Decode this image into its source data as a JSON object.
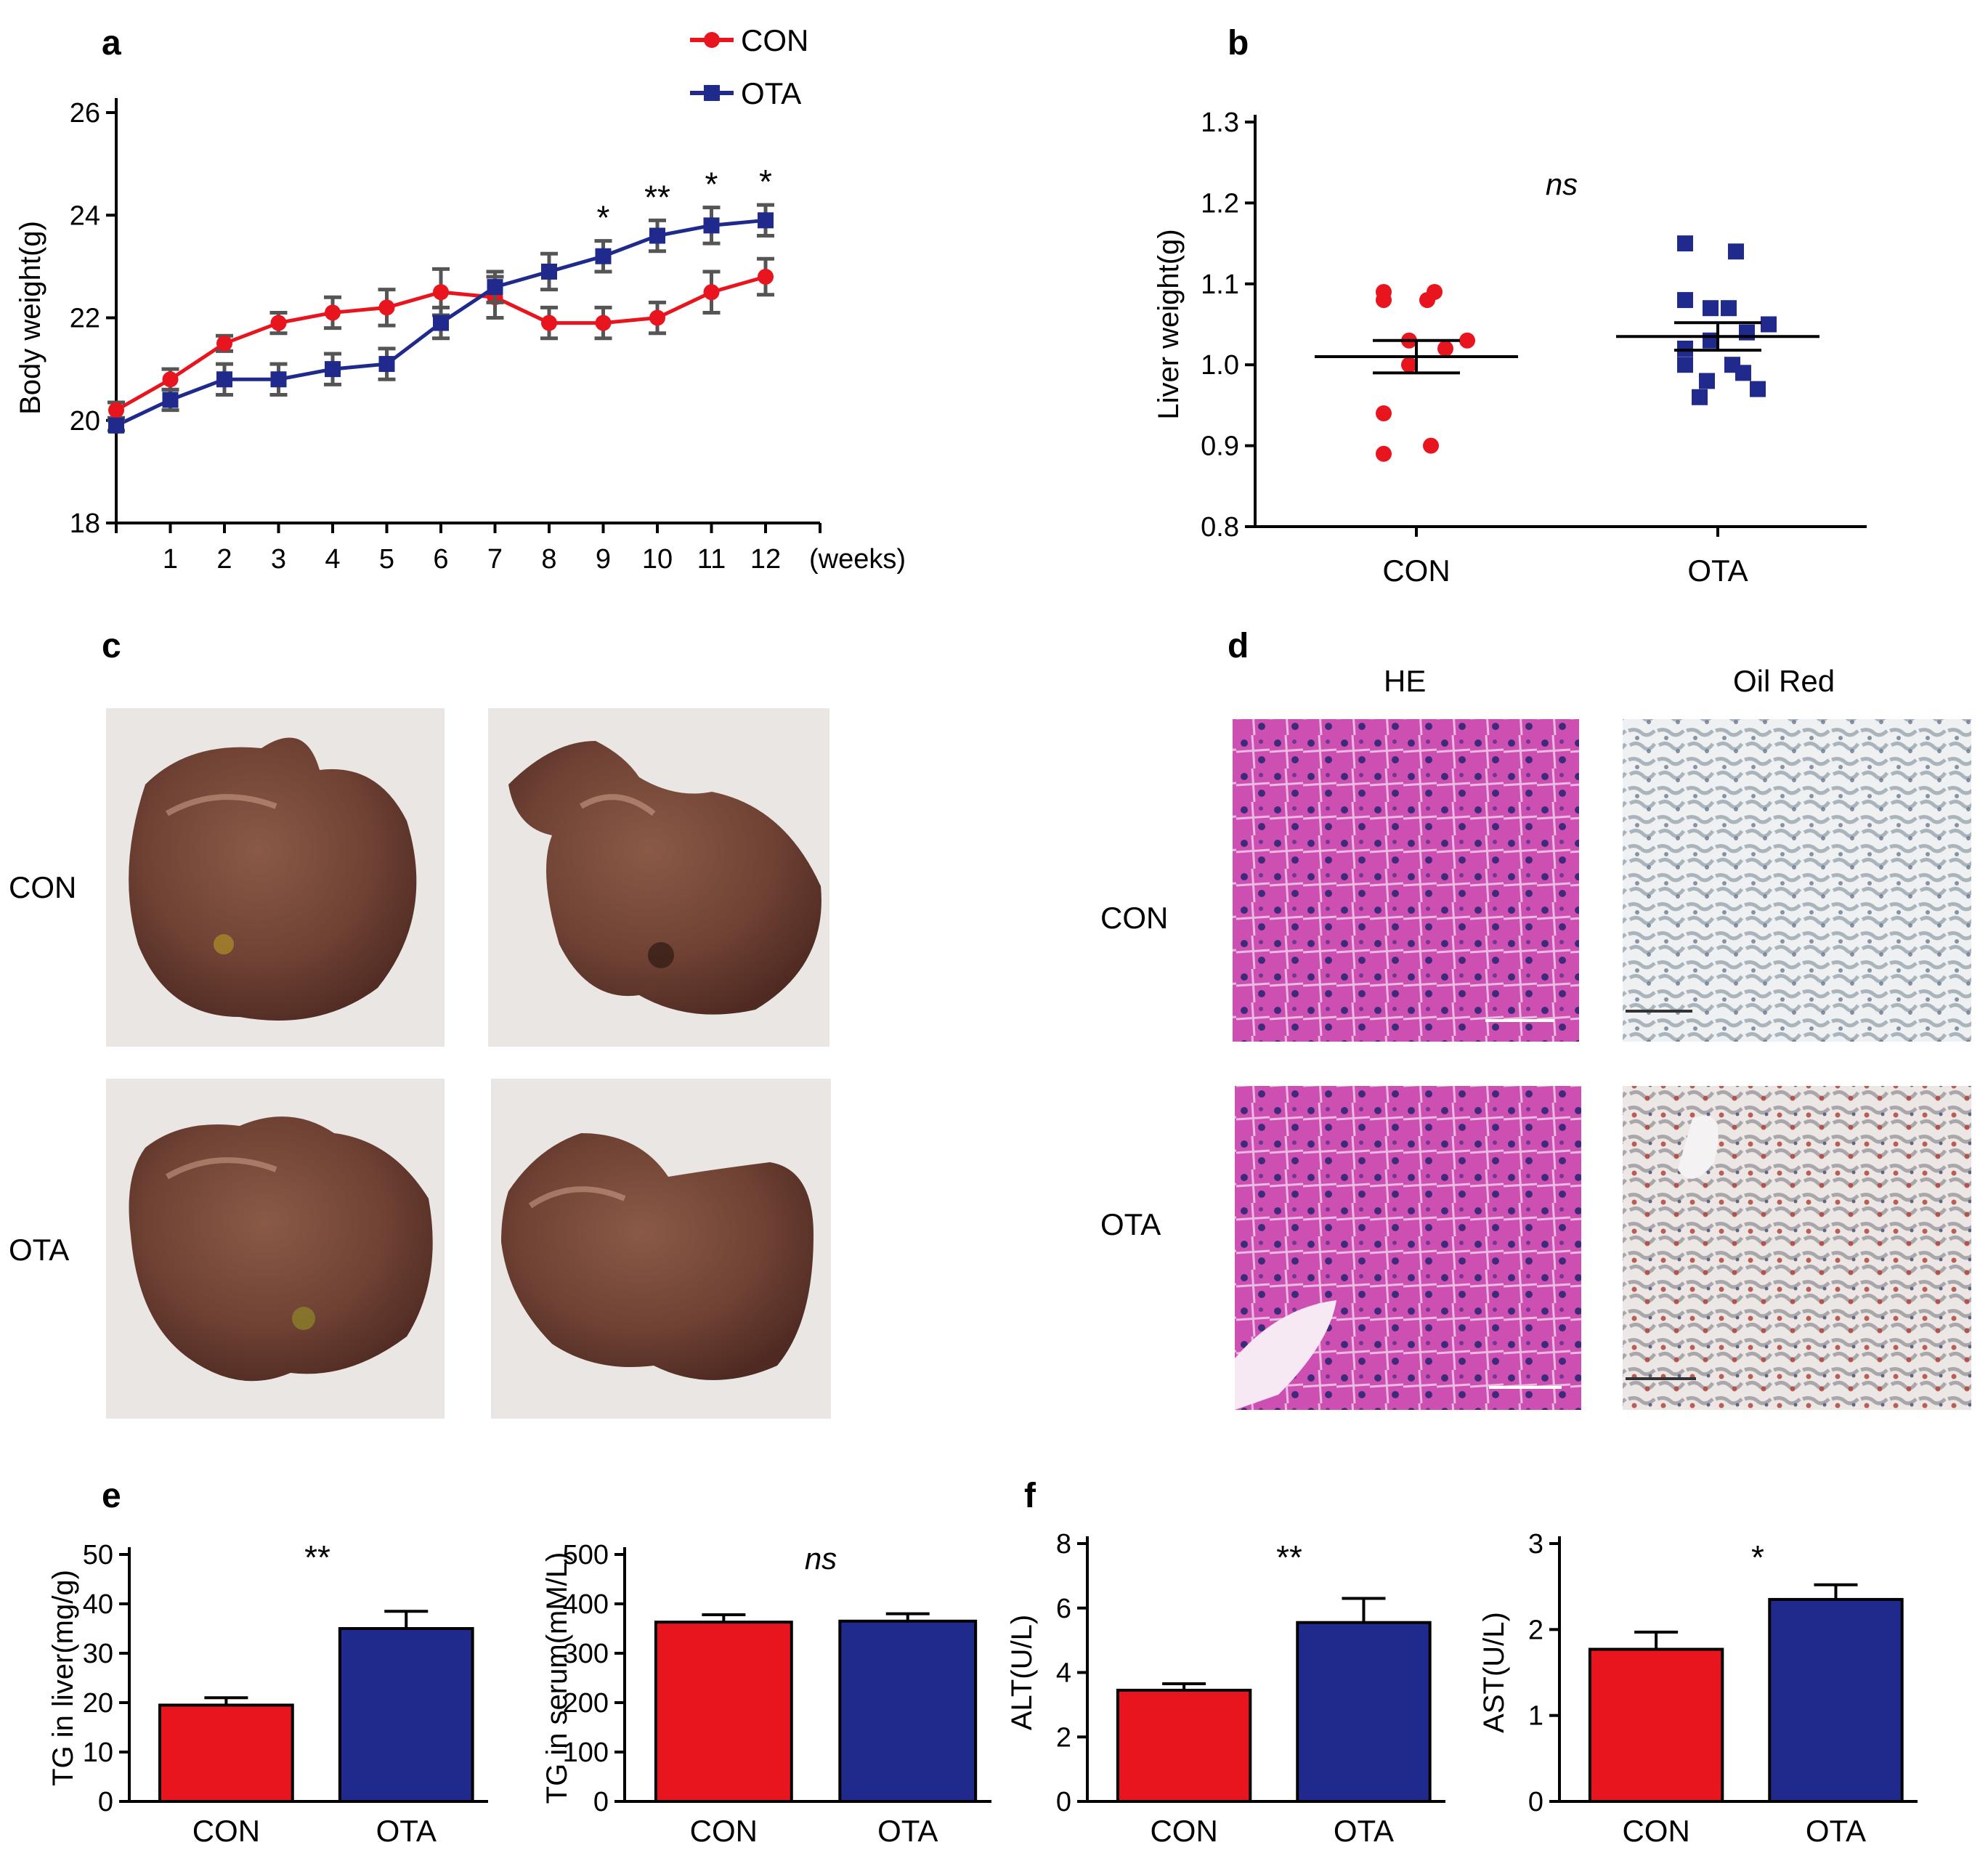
{
  "panels": {
    "a": "a",
    "b": "b",
    "c": "c",
    "d": "d",
    "e": "e",
    "f": "f"
  },
  "colors": {
    "con": "#e8141e",
    "ota": "#1f2a8c",
    "err": "#555555"
  },
  "legend": {
    "con": "CON",
    "ota": "OTA"
  },
  "chart_data": [
    {
      "id": "a",
      "type": "line",
      "ylabel": "Body weight(g)",
      "xlabel": "(weeks)",
      "x": [
        0,
        1,
        2,
        3,
        4,
        5,
        6,
        7,
        8,
        9,
        10,
        11,
        12
      ],
      "xticks": [
        "",
        "1",
        "2",
        "3",
        "4",
        "5",
        "6",
        "7",
        "8",
        "9",
        "10",
        "11",
        "12"
      ],
      "ylim": [
        18,
        26
      ],
      "yticks": [
        18,
        20,
        22,
        24,
        26
      ],
      "series": [
        {
          "name": "CON",
          "marker": "circle",
          "values": [
            20.2,
            20.8,
            21.5,
            21.9,
            22.1,
            22.2,
            22.5,
            22.4,
            21.9,
            21.9,
            22.0,
            22.5,
            22.8
          ],
          "err": [
            0.15,
            0.2,
            0.15,
            0.2,
            0.3,
            0.35,
            0.45,
            0.4,
            0.3,
            0.3,
            0.3,
            0.4,
            0.35
          ]
        },
        {
          "name": "OTA",
          "marker": "square",
          "values": [
            19.9,
            20.4,
            20.8,
            20.8,
            21.0,
            21.1,
            21.9,
            22.6,
            22.9,
            23.2,
            23.6,
            23.8,
            23.9
          ],
          "err": [
            0.1,
            0.2,
            0.3,
            0.3,
            0.3,
            0.3,
            0.3,
            0.3,
            0.35,
            0.3,
            0.3,
            0.35,
            0.3
          ]
        }
      ],
      "annotations": [
        {
          "x": 9,
          "text": "*"
        },
        {
          "x": 10,
          "text": "**"
        },
        {
          "x": 11,
          "text": "*"
        },
        {
          "x": 12,
          "text": "*"
        }
      ]
    },
    {
      "id": "b",
      "type": "scatter",
      "ylabel": "Liver weight(g)",
      "categories": [
        "CON",
        "OTA"
      ],
      "ylim": [
        0.8,
        1.3
      ],
      "yticks": [
        "0.8",
        "0.9",
        "1.0",
        "1.1",
        "1.2",
        "1.3"
      ],
      "series": [
        {
          "name": "CON",
          "marker": "circle",
          "mean": 1.01,
          "sem": 0.02,
          "points": [
            1.09,
            1.09,
            1.08,
            1.08,
            1.03,
            1.03,
            1.02,
            1.0,
            0.94,
            0.9,
            0.89
          ]
        },
        {
          "name": "OTA",
          "marker": "square",
          "mean": 1.035,
          "sem": 0.017,
          "points": [
            1.15,
            1.14,
            1.08,
            1.07,
            1.07,
            1.05,
            1.04,
            1.03,
            1.02,
            1.0,
            1.0,
            0.99,
            0.98,
            0.97,
            0.96
          ]
        }
      ],
      "annotation": "ns"
    },
    {
      "id": "e1",
      "type": "bar",
      "ylabel": "TG in liver(mg/g)",
      "categories": [
        "CON",
        "OTA"
      ],
      "values": [
        19.5,
        35.0
      ],
      "err": [
        1.5,
        3.5
      ],
      "ylim": [
        0,
        50
      ],
      "yticks": [
        0,
        10,
        20,
        30,
        40,
        50
      ],
      "annotation": "**"
    },
    {
      "id": "e2",
      "type": "bar",
      "ylabel": "TG in serum(mM/L)",
      "categories": [
        "CON",
        "OTA"
      ],
      "values": [
        363,
        365
      ],
      "err": [
        15,
        15
      ],
      "ylim": [
        0,
        500
      ],
      "yticks": [
        0,
        100,
        200,
        300,
        400,
        500
      ],
      "annotation": "ns"
    },
    {
      "id": "f1",
      "type": "bar",
      "ylabel": "ALT(U/L)",
      "categories": [
        "CON",
        "OTA"
      ],
      "values": [
        3.45,
        5.55
      ],
      "err": [
        0.2,
        0.75
      ],
      "ylim": [
        0,
        8
      ],
      "yticks": [
        0,
        2,
        4,
        6,
        8
      ],
      "annotation": "**"
    },
    {
      "id": "f2",
      "type": "bar",
      "ylabel": "AST(U/L)",
      "categories": [
        "CON",
        "OTA"
      ],
      "values": [
        1.77,
        2.35
      ],
      "err": [
        0.2,
        0.17
      ],
      "ylim": [
        0,
        3
      ],
      "yticks": [
        0,
        1,
        2,
        3
      ],
      "annotation": "*"
    }
  ],
  "panel_c": {
    "row_labels": [
      "CON",
      "OTA"
    ]
  },
  "panel_d": {
    "col_labels": [
      "HE",
      "Oil Red"
    ],
    "row_labels": [
      "CON",
      "OTA"
    ]
  }
}
